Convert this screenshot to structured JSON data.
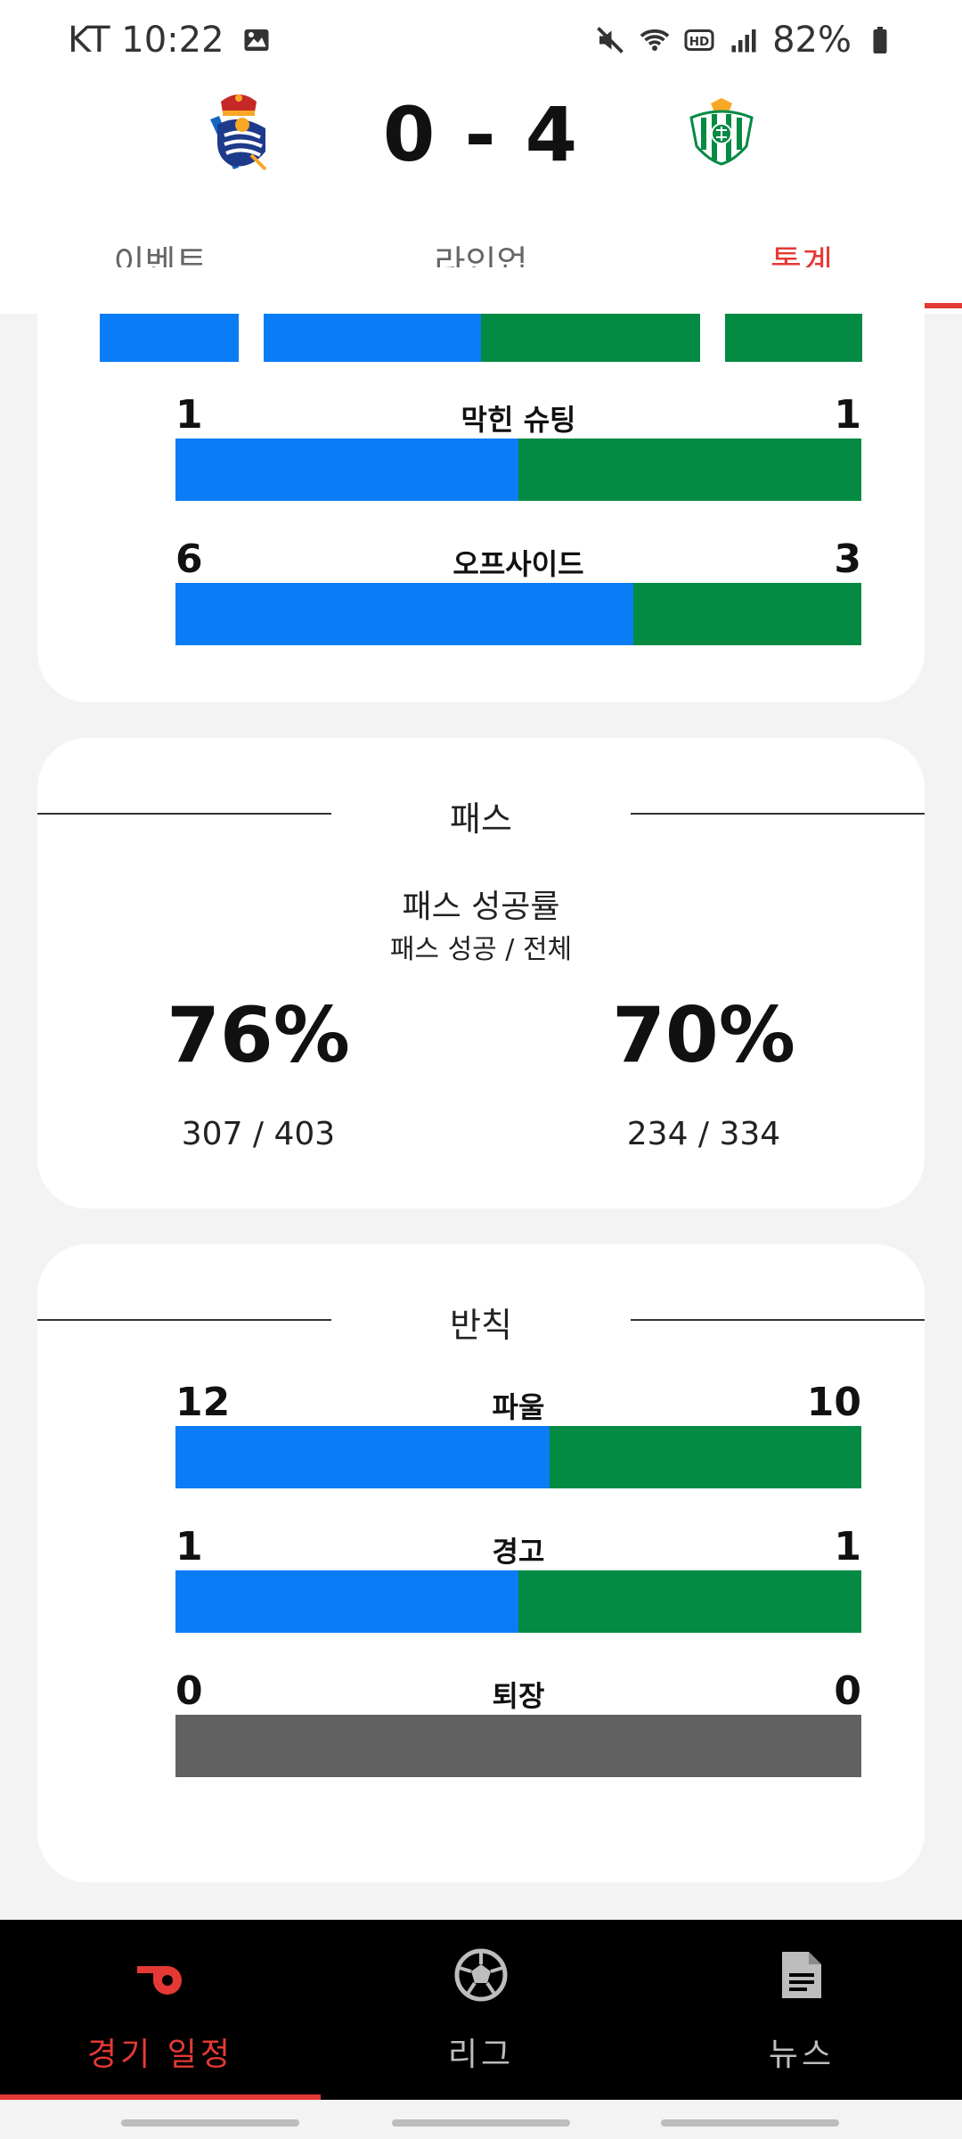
{
  "status": {
    "carrier_time": "KT 10:22",
    "battery": "82%"
  },
  "match": {
    "score": "0 - 4",
    "tabs": [
      "이벤트",
      "라인업",
      "통계"
    ],
    "active_tab": "통계"
  },
  "stats_top": [
    {
      "label": "막힌 슈팅",
      "home": "1",
      "away": "1",
      "home_share": 0.5
    },
    {
      "label": "오프사이드",
      "home": "6",
      "away": "3",
      "home_share": 0.667
    }
  ],
  "passes": {
    "title": "패스",
    "subtitle": "패스 성공률",
    "note": "패스 성공 / 전체",
    "home_pct": "76%",
    "away_pct": "70%",
    "home_ratio": "307 / 403",
    "away_ratio": "234 / 334"
  },
  "fouls": {
    "title": "반칙",
    "rows": [
      {
        "label": "파울",
        "home": "12",
        "away": "10",
        "home_share": 0.545
      },
      {
        "label": "경고",
        "home": "1",
        "away": "1",
        "home_share": 0.5
      },
      {
        "label": "퇴장",
        "home": "0",
        "away": "0",
        "home_share": null
      }
    ]
  },
  "bottom_nav": {
    "items": [
      "경기 일정",
      "리그",
      "뉴스"
    ],
    "active": "경기 일정"
  },
  "colors": {
    "home": "#0a7df6",
    "away": "#038a43",
    "accent": "#e53935",
    "neutral": "#616161"
  }
}
